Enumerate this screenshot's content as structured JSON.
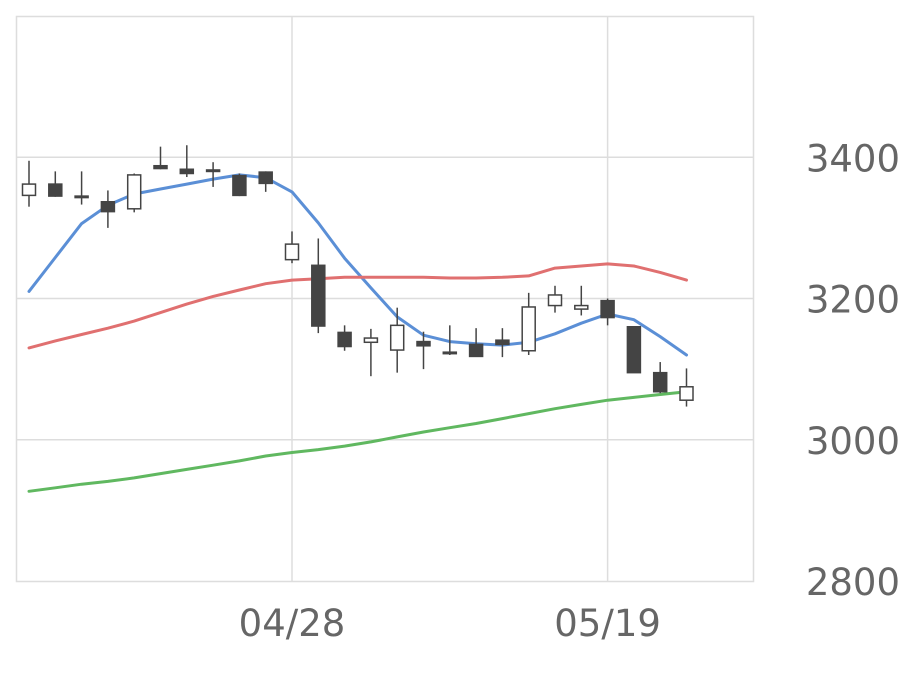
{
  "chart_data": {
    "type": "candlestick",
    "title": "",
    "xlabel": "",
    "ylabel": "",
    "ylim": [
      2800,
      3600
    ],
    "yticks": [
      2800,
      3000,
      3200,
      3400
    ],
    "x_tick_labels": [
      {
        "index": 10,
        "label": "04/28"
      },
      {
        "index": 22,
        "label": "05/19"
      }
    ],
    "grid": true,
    "y_axis_position": "right",
    "colors": {
      "up_fill": "#ffffff",
      "down_fill": "#444444",
      "candle_stroke": "#444444",
      "grid": "#dddddd",
      "frame": "#dddddd",
      "tick_text": "#666666",
      "ma_short": "#5b8fd6",
      "ma_mid": "#e07070",
      "ma_long": "#60b860"
    },
    "candles": [
      {
        "o": 3346,
        "h": 3395,
        "l": 3330,
        "c": 3362
      },
      {
        "o": 3362,
        "h": 3380,
        "l": 3344,
        "c": 3345
      },
      {
        "o": 3345,
        "h": 3380,
        "l": 3333,
        "c": 3344
      },
      {
        "o": 3337,
        "h": 3353,
        "l": 3300,
        "c": 3323
      },
      {
        "o": 3327,
        "h": 3377,
        "l": 3322,
        "c": 3375
      },
      {
        "o": 3388,
        "h": 3415,
        "l": 3383,
        "c": 3384
      },
      {
        "o": 3383,
        "h": 3417,
        "l": 3372,
        "c": 3377
      },
      {
        "o": 3382,
        "h": 3393,
        "l": 3358,
        "c": 3381
      },
      {
        "o": 3374,
        "h": 3377,
        "l": 3345,
        "c": 3346
      },
      {
        "o": 3379,
        "h": 3380,
        "l": 3351,
        "c": 3363
      },
      {
        "o": 3255,
        "h": 3295,
        "l": 3250,
        "c": 3277
      },
      {
        "o": 3247,
        "h": 3285,
        "l": 3151,
        "c": 3161
      },
      {
        "o": 3152,
        "h": 3162,
        "l": 3126,
        "c": 3132
      },
      {
        "o": 3138,
        "h": 3157,
        "l": 3090,
        "c": 3144
      },
      {
        "o": 3127,
        "h": 3187,
        "l": 3095,
        "c": 3162
      },
      {
        "o": 3139,
        "h": 3153,
        "l": 3100,
        "c": 3133
      },
      {
        "o": 3124,
        "h": 3162,
        "l": 3120,
        "c": 3123
      },
      {
        "o": 3135,
        "h": 3158,
        "l": 3118,
        "c": 3118
      },
      {
        "o": 3141,
        "h": 3158,
        "l": 3117,
        "c": 3135
      },
      {
        "o": 3126,
        "h": 3208,
        "l": 3120,
        "c": 3188
      },
      {
        "o": 3190,
        "h": 3218,
        "l": 3180,
        "c": 3205
      },
      {
        "o": 3185,
        "h": 3218,
        "l": 3176,
        "c": 3190
      },
      {
        "o": 3197,
        "h": 3200,
        "l": 3162,
        "c": 3173
      },
      {
        "o": 3160,
        "h": 3160,
        "l": 3095,
        "c": 3095
      },
      {
        "o": 3095,
        "h": 3110,
        "l": 3066,
        "c": 3068
      },
      {
        "o": 3056,
        "h": 3101,
        "l": 3047,
        "c": 3075
      }
    ],
    "series": [
      {
        "key": "ma_short",
        "values": [
          3210,
          3258,
          3306,
          3332,
          3348,
          3355,
          3362,
          3369,
          3375,
          3371,
          3351,
          3307,
          3257,
          3215,
          3174,
          3148,
          3139,
          3136,
          3134,
          3138,
          3150,
          3165,
          3178,
          3170,
          3146,
          3120
        ]
      },
      {
        "key": "ma_mid",
        "values": [
          3130,
          3140,
          3149,
          3158,
          3168,
          3180,
          3192,
          3203,
          3212,
          3221,
          3226,
          3228,
          3230,
          3230,
          3230,
          3230,
          3229,
          3229,
          3230,
          3232,
          3243,
          3246,
          3249,
          3246,
          3237,
          3226
        ]
      },
      {
        "key": "ma_long",
        "values": [
          2927,
          2932,
          2937,
          2941,
          2946,
          2952,
          2958,
          2964,
          2970,
          2977,
          2982,
          2986,
          2991,
          2997,
          3004,
          3011,
          3017,
          3023,
          3030,
          3037,
          3044,
          3050,
          3056,
          3060,
          3064,
          3068
        ]
      }
    ]
  }
}
